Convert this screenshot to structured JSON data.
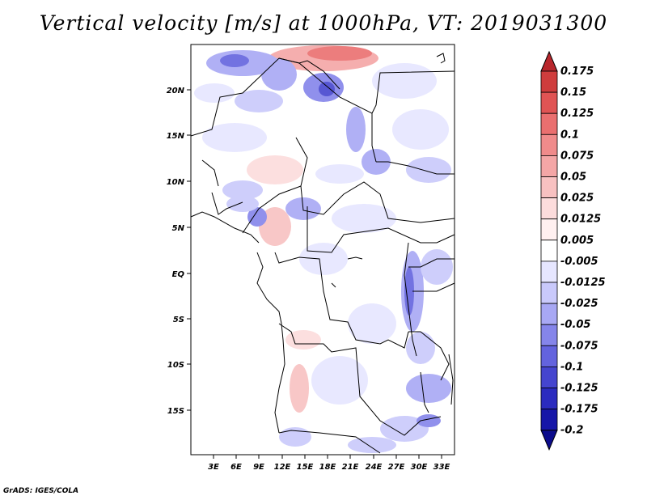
{
  "title": "Vertical velocity [m/s] at 1000hPa, VT: 2019031300",
  "credit": "GrADS: IGES/COLA",
  "map": {
    "lat_labels": [
      "20N",
      "15N",
      "10N",
      "5N",
      "EQ",
      "5S",
      "10S",
      "15S"
    ],
    "lon_labels": [
      "3E",
      "6E",
      "9E",
      "12E",
      "15E",
      "18E",
      "21E",
      "24E",
      "27E",
      "30E",
      "33E"
    ]
  },
  "colorbar": {
    "levels": [
      "0.175",
      "0.15",
      "0.125",
      "0.1",
      "0.075",
      "0.05",
      "0.025",
      "0.0125",
      "0.005",
      "-0.005",
      "-0.0125",
      "-0.025",
      "-0.05",
      "-0.075",
      "-0.1",
      "-0.125",
      "-0.175",
      "-0.2"
    ],
    "colors": [
      "#b8262c",
      "#cf3d3d",
      "#e05454",
      "#ea6f6f",
      "#f08b8b",
      "#f4a6a6",
      "#f8c1c1",
      "#fcdcdc",
      "#fff0f0",
      "#ffffff",
      "#e6e6ff",
      "#c9c9fb",
      "#a8a8f4",
      "#8585ea",
      "#6363de",
      "#4545cf",
      "#2b2bbf",
      "#1616a8",
      "#0c0c8c"
    ]
  }
}
